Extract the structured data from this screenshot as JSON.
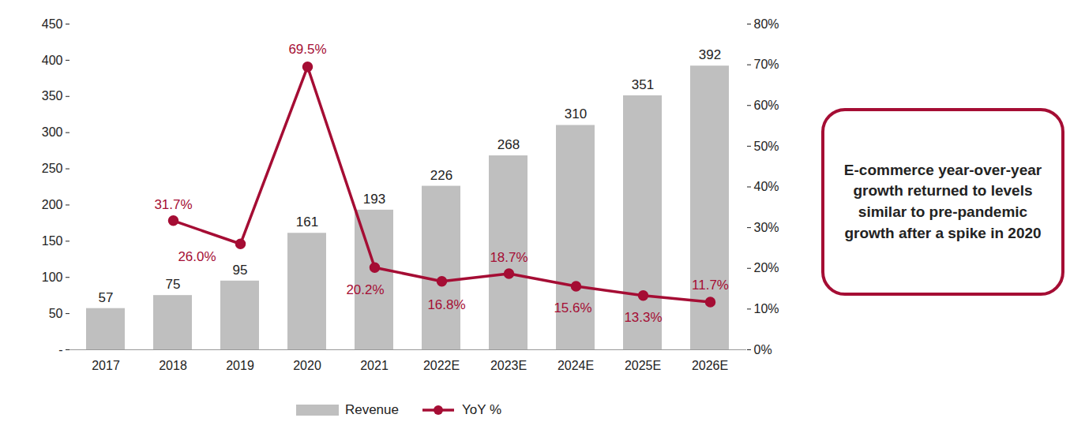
{
  "chart_data": {
    "type": "bar",
    "categories": [
      "2017",
      "2018",
      "2019",
      "2020",
      "2021",
      "2022E",
      "2023E",
      "2024E",
      "2025E",
      "2026E"
    ],
    "series": [
      {
        "name": "Revenue",
        "type": "bar",
        "color": "#bfbfbf",
        "values": [
          57,
          75,
          95,
          161,
          193,
          226,
          268,
          310,
          351,
          392
        ]
      },
      {
        "name": "YoY %",
        "type": "line",
        "axis": "y2",
        "color": "#a50d34",
        "marker": "circle",
        "values": [
          null,
          31.7,
          26.0,
          69.5,
          20.2,
          16.8,
          18.7,
          15.6,
          13.3,
          11.7
        ],
        "value_labels": [
          null,
          "31.7%",
          "26.0%",
          "69.5%",
          "20.2%",
          "16.8%",
          "18.7%",
          "15.6%",
          "13.3%",
          "11.7%"
        ]
      }
    ],
    "ylim": [
      0,
      450
    ],
    "yticks": [
      {
        "value": 0,
        "label": "-"
      },
      50,
      100,
      150,
      200,
      250,
      300,
      350,
      400,
      450
    ],
    "y2lim": [
      0,
      80
    ],
    "y2ticks": [
      {
        "value": 0,
        "label": "0%"
      },
      {
        "value": 10,
        "label": "10%"
      },
      {
        "value": 20,
        "label": "20%"
      },
      {
        "value": 30,
        "label": "30%"
      },
      {
        "value": 40,
        "label": "40%"
      },
      {
        "value": 50,
        "label": "50%"
      },
      {
        "value": 60,
        "label": "60%"
      },
      {
        "value": 70,
        "label": "70%"
      },
      {
        "value": 80,
        "label": "80%"
      }
    ],
    "grid": false,
    "data_labels": true,
    "legend": "bottom",
    "annotation": "E-commerce year-over-year growth returned to levels similar to pre-pandemic growth after a spike in 2020"
  }
}
